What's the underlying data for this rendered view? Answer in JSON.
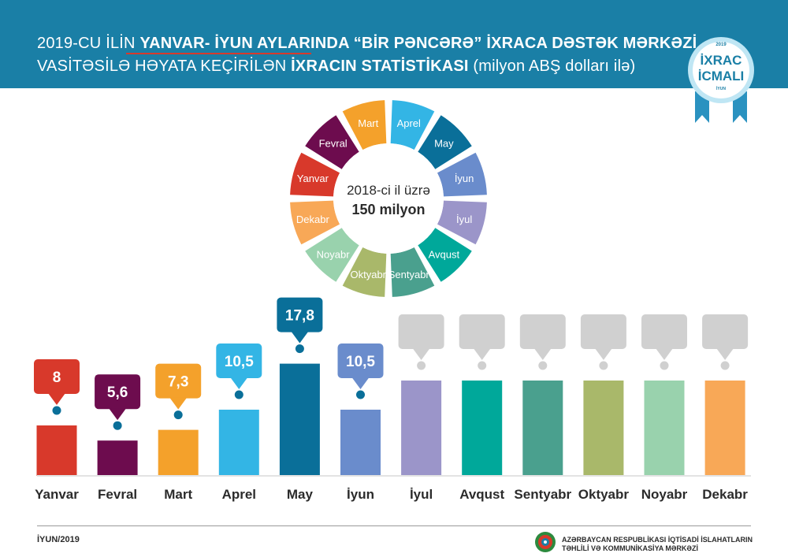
{
  "header": {
    "line1_a": "2019-CU İLİN ",
    "line1_b": "YANVAR- İYUN AYLARINDA “BİR PƏNCƏRƏ” İXRACA DƏSTƏK MƏRKƏZİ",
    "line2_a": "VASİTƏSİLƏ HƏYATA KEÇİRİLƏN ",
    "line2_b": "İXRACIN STATİSTİKASI",
    "line2_c": " (milyon ABŞ dolları ilə)"
  },
  "badge": {
    "year": "2019",
    "line1": "İXRAC",
    "line2": "İCMALI",
    "month": "İYUN"
  },
  "ring": {
    "center_line1": "2018-ci il üzrə",
    "center_line2": "150 milyon",
    "segments": [
      {
        "label": "Aprel",
        "color": "#33b5e5"
      },
      {
        "label": "May",
        "color": "#0a6f99"
      },
      {
        "label": "İyun",
        "color": "#6a8ccc"
      },
      {
        "label": "İyul",
        "color": "#9b95c9"
      },
      {
        "label": "Avqust",
        "color": "#00a89a"
      },
      {
        "label": "Sentyabr",
        "color": "#4aa08e"
      },
      {
        "label": "Oktyabr",
        "color": "#a9b86a"
      },
      {
        "label": "Noyabr",
        "color": "#99d2ad"
      },
      {
        "label": "Dekabr",
        "color": "#f8a857"
      },
      {
        "label": "Yanvar",
        "color": "#d8392b"
      },
      {
        "label": "Fevral",
        "color": "#6d0c4e"
      },
      {
        "label": "Mart",
        "color": "#f4a12b"
      }
    ]
  },
  "chart_data": {
    "type": "bar",
    "categories": [
      "Yanvar",
      "Fevral",
      "Mart",
      "Aprel",
      "May",
      "İyun",
      "İyul",
      "Avqust",
      "Sentyabr",
      "Oktyabr",
      "Noyabr",
      "Dekabr"
    ],
    "values": [
      8,
      5.6,
      7.3,
      10.5,
      17.8,
      10.5,
      null,
      null,
      null,
      null,
      null,
      null
    ],
    "value_labels": [
      "8",
      "5,6",
      "7,3",
      "10,5",
      "17,8",
      "10,5",
      "",
      "",
      "",
      "",
      "",
      ""
    ],
    "colors": [
      "#d8392b",
      "#6d0c4e",
      "#f4a12b",
      "#33b5e5",
      "#0a6f99",
      "#6a8ccc",
      "#9b95c9",
      "#00a89a",
      "#4aa08e",
      "#a9b86a",
      "#99d2ad",
      "#f8a857"
    ],
    "placeholder_color": "#d0d0d0",
    "title": "",
    "xlabel": "",
    "ylabel": ""
  },
  "footer": {
    "date": "İYUN/2019",
    "org_line1": "AZƏRBAYCAN RESPUBLİKASI İQTİSADİ İSLAHATLARIN",
    "org_line2": "TƏHLİLİ VƏ KOMMUNİKASİYA MƏRKƏZİ"
  }
}
